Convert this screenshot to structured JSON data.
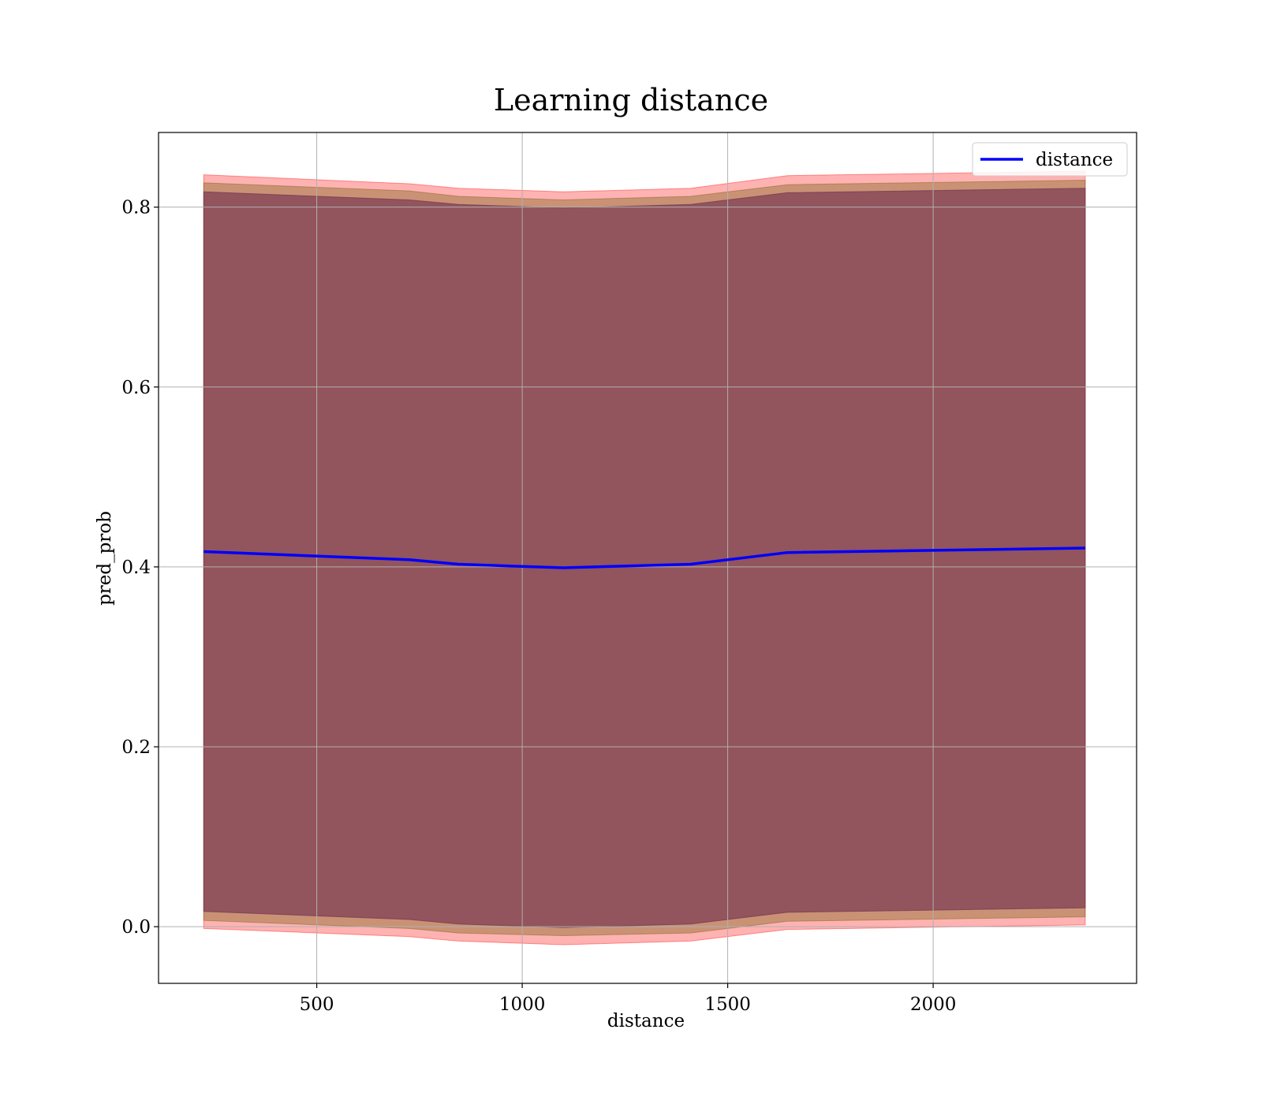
{
  "chart_data": {
    "type": "line",
    "title": "Learning distance",
    "xlabel": "distance",
    "ylabel": "pred_prob",
    "xlim": [
      115,
      2495
    ],
    "ylim": [
      -0.063,
      0.883
    ],
    "xticks": [
      500,
      1000,
      1500,
      2000
    ],
    "yticks": [
      0.0,
      0.2,
      0.4,
      0.6,
      0.8
    ],
    "xtick_labels": [
      "500",
      "1000",
      "1500",
      "2000"
    ],
    "ytick_labels": [
      "0.0",
      "0.2",
      "0.4",
      "0.6",
      "0.8"
    ],
    "grid": true,
    "legend": {
      "placement": "top-right",
      "entries": [
        "distance"
      ]
    },
    "x": [
      225,
      725,
      845,
      1100,
      1410,
      1645,
      2370
    ],
    "series": [
      {
        "name": "distance",
        "color": "#0000ff",
        "values": [
          0.417,
          0.408,
          0.403,
          0.399,
          0.403,
          0.416,
          0.421
        ]
      }
    ],
    "bands": [
      {
        "color": "#ff0000",
        "opacity": 0.3,
        "upper": [
          0.836,
          0.826,
          0.821,
          0.817,
          0.821,
          0.835,
          0.84
        ],
        "lower": [
          -0.002,
          -0.011,
          -0.016,
          -0.02,
          -0.016,
          -0.003,
          0.002
        ]
      },
      {
        "color": "#8a6a2a",
        "opacity": 0.45,
        "upper": [
          0.827,
          0.818,
          0.812,
          0.808,
          0.812,
          0.825,
          0.83
        ],
        "lower": [
          0.007,
          -0.002,
          -0.007,
          -0.01,
          -0.007,
          0.006,
          0.011
        ]
      },
      {
        "color": "#7a3a52",
        "opacity": 0.7,
        "upper": [
          0.817,
          0.808,
          0.803,
          0.799,
          0.803,
          0.816,
          0.821
        ],
        "lower": [
          0.017,
          0.008,
          0.003,
          -0.001,
          0.003,
          0.016,
          0.021
        ]
      }
    ]
  }
}
